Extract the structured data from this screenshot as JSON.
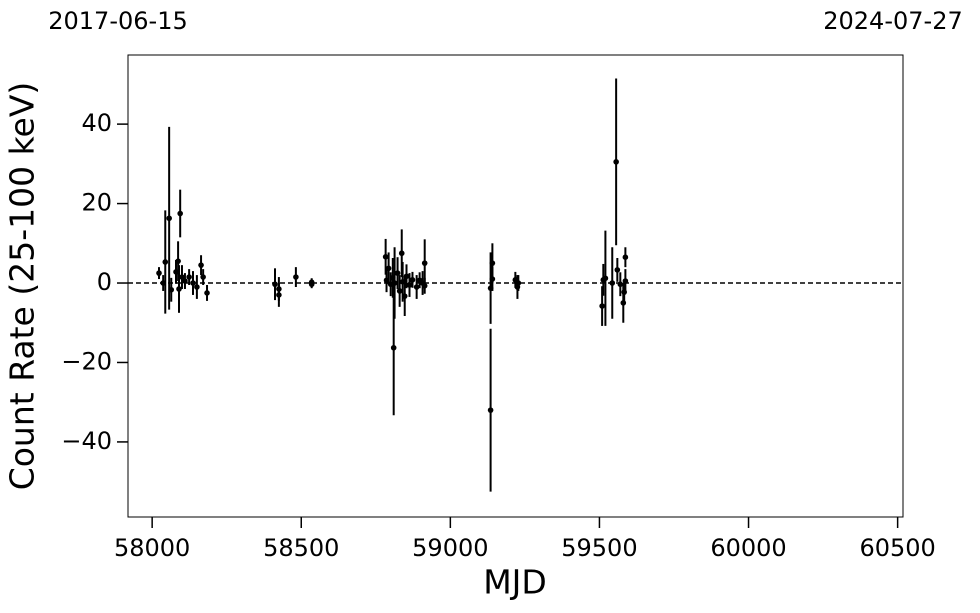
{
  "chart_data": {
    "type": "scatter",
    "xlabel": "MJD",
    "ylabel": "Count Rate (25-100 keV)",
    "x": [
      58023,
      58037,
      58044,
      58057,
      58064,
      58080,
      58087,
      58090,
      58094,
      58100,
      58110,
      58124,
      58137,
      58150,
      58164,
      58171,
      58184,
      58412,
      58425,
      58425,
      58482,
      58535,
      58535,
      58783,
      58786,
      58793,
      58800,
      58807,
      58810,
      58813,
      58823,
      58830,
      58837,
      58840,
      58847,
      58853,
      58863,
      58873,
      58887,
      58897,
      58907,
      58914,
      58914,
      59135,
      59135,
      59141,
      59141,
      59218,
      59225,
      59228,
      59509,
      59513,
      59520,
      59543,
      59556,
      59560,
      59570,
      59580,
      59583,
      59587,
      59587
    ],
    "values": [
      2.5,
      0,
      5.3,
      16.3,
      -1.7,
      2.8,
      5.5,
      -1.5,
      17.5,
      1.5,
      0.5,
      1.5,
      0,
      -1,
      4.5,
      1.5,
      -2.5,
      -0.3,
      -1.5,
      -3,
      1.5,
      -0.3,
      0.2,
      6.6,
      0.7,
      3.7,
      -0.3,
      1.3,
      -16.3,
      0,
      2.5,
      -2,
      7.5,
      0.3,
      -3.3,
      1.7,
      -0.5,
      0.8,
      -1,
      0.7,
      0,
      5,
      -0.7,
      -1.3,
      -32,
      5,
      1,
      0.8,
      -1,
      0,
      -5.8,
      0.8,
      1.2,
      0,
      30.5,
      3.3,
      -0.3,
      -5,
      -2.3,
      6.5,
      0.5
    ],
    "errors": [
      1.5,
      2,
      13,
      23,
      3,
      3,
      5,
      6,
      6,
      3,
      2,
      2,
      3,
      3,
      2.5,
      2,
      2,
      4,
      3,
      3,
      2.5,
      1,
      1,
      4.5,
      3,
      4,
      3,
      5,
      17,
      9,
      4,
      4,
      6,
      5,
      5,
      3,
      3,
      2,
      3,
      2,
      3,
      6,
      2,
      9,
      20.5,
      5,
      3,
      2,
      3,
      2,
      5,
      4,
      12,
      9,
      21,
      3,
      3,
      5,
      3,
      2.5,
      3
    ],
    "color": "#000000",
    "hline": 0,
    "xlim": [
      57919,
      60518
    ],
    "ylim": [
      -58.9,
      57.4
    ],
    "xticks": [
      58000,
      58500,
      59000,
      59500,
      60000,
      60500
    ],
    "yticks": [
      {
        "value": -40,
        "label": "−40"
      },
      {
        "value": -20,
        "label": "−20"
      },
      0,
      20,
      40
    ],
    "x2ticks": [
      {
        "value": 57919,
        "label": "2017-06-15"
      },
      {
        "value": 60518,
        "label": "2024-07-27"
      }
    ]
  }
}
